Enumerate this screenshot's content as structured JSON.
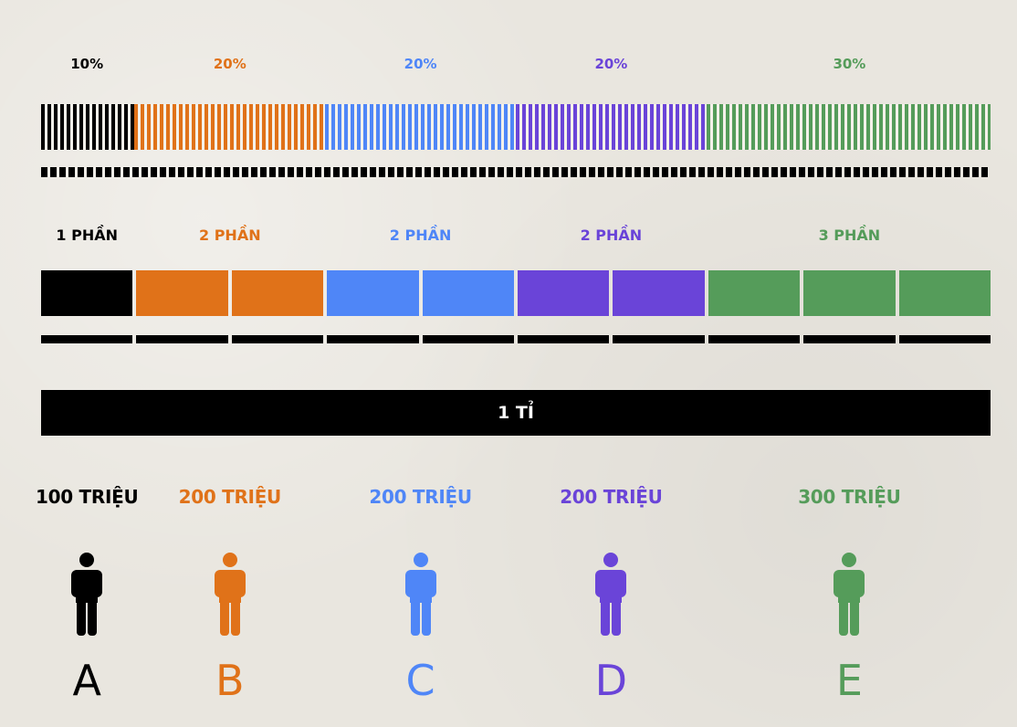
{
  "colors": {
    "A": "#000000",
    "B": "#e07219",
    "C": "#4f86f7",
    "D": "#6a44d8",
    "E": "#559c5a"
  },
  "percentages": [
    "10%",
    "20%",
    "20%",
    "20%",
    "30%"
  ],
  "parts_labels": [
    "1 PHẦN",
    "2 PHẦN",
    "2 PHẦN",
    "2 PHẦN",
    "3 PHẦN"
  ],
  "parts_counts": [
    1,
    2,
    2,
    2,
    3
  ],
  "total_label": "1 TỈ",
  "amounts": [
    "100 TRIỆU",
    "200 TRIỆU",
    "200 TRIỆU",
    "200 TRIỆU",
    "300 TRIỆU"
  ],
  "persons": [
    "A",
    "B",
    "C",
    "D",
    "E"
  ],
  "icons": {
    "person": "person-icon"
  }
}
